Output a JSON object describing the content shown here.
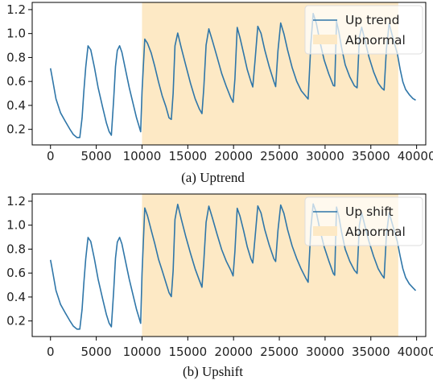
{
  "chart_data": [
    {
      "type": "line",
      "caption": "(a) Uptrend",
      "xlim": [
        -2000,
        41000
      ],
      "ylim": [
        0.07,
        1.26
      ],
      "xticks": [
        0,
        5000,
        10000,
        15000,
        20000,
        25000,
        30000,
        35000,
        40000
      ],
      "xtick_labels": [
        "0",
        "5000",
        "10000",
        "15000",
        "20000",
        "25000",
        "30000",
        "35000",
        "40000"
      ],
      "yticks": [
        0.2,
        0.4,
        0.6,
        0.8,
        1.0,
        1.2
      ],
      "ytick_labels": [
        "0.2",
        "0.4",
        "0.6",
        "0.8",
        "1.0",
        "1.2"
      ],
      "grid": false,
      "legend_position": "upper-right",
      "abnormal_span": {
        "x0": 10000,
        "x1": 38000,
        "label": "Abnormal",
        "color": "#fde9c5"
      },
      "series": [
        {
          "name": "Up trend",
          "color": "#2f76a8",
          "x": [
            0,
            200,
            600,
            1100,
            1600,
            2100,
            2500,
            2900,
            3200,
            3450,
            3650,
            3850,
            4100,
            4400,
            4800,
            5200,
            5700,
            6100,
            6400,
            6650,
            6900,
            7100,
            7300,
            7550,
            7800,
            8200,
            8600,
            9000,
            9400,
            9650,
            9850,
            10000,
            10300,
            10600,
            11000,
            11400,
            11800,
            12200,
            12600,
            12950,
            13200,
            13400,
            13600,
            13900,
            14300,
            14800,
            15300,
            15800,
            16250,
            16550,
            16750,
            17000,
            17300,
            17700,
            18200,
            18700,
            19200,
            19700,
            19950,
            20150,
            20400,
            20700,
            21100,
            21500,
            21900,
            22100,
            22350,
            22650,
            23000,
            23400,
            23900,
            24400,
            24600,
            24850,
            25150,
            25500,
            25900,
            26400,
            26900,
            27400,
            27900,
            28150,
            28450,
            28700,
            29050,
            29450,
            29900,
            30400,
            30900,
            31050,
            31250,
            31500,
            31800,
            32200,
            32700,
            33200,
            33500,
            33750,
            34000,
            34350,
            34800,
            35300,
            35800,
            36200,
            36450,
            36700,
            37000,
            37400,
            37900,
            38200,
            38500,
            38800,
            39200,
            39600,
            39900
          ],
          "values": [
            0.71,
            0.63,
            0.45,
            0.34,
            0.27,
            0.2,
            0.16,
            0.13,
            0.13,
            0.3,
            0.52,
            0.72,
            0.9,
            0.86,
            0.72,
            0.55,
            0.38,
            0.26,
            0.18,
            0.15,
            0.45,
            0.72,
            0.86,
            0.9,
            0.84,
            0.7,
            0.55,
            0.42,
            0.3,
            0.23,
            0.18,
            0.52,
            0.95,
            0.92,
            0.84,
            0.72,
            0.6,
            0.48,
            0.39,
            0.3,
            0.28,
            0.5,
            0.9,
            1.0,
            0.88,
            0.73,
            0.58,
            0.46,
            0.37,
            0.33,
            0.55,
            0.9,
            1.04,
            0.94,
            0.8,
            0.67,
            0.56,
            0.46,
            0.43,
            0.62,
            1.05,
            0.97,
            0.83,
            0.7,
            0.6,
            0.55,
            0.78,
            1.06,
            1.0,
            0.87,
            0.72,
            0.6,
            0.56,
            0.85,
            1.09,
            1.0,
            0.86,
            0.72,
            0.6,
            0.52,
            0.48,
            0.45,
            0.92,
            1.17,
            1.08,
            0.93,
            0.78,
            0.66,
            0.57,
            0.56,
            1.1,
            1.02,
            0.88,
            0.74,
            0.64,
            0.56,
            0.55,
            0.97,
            1.05,
            0.95,
            0.8,
            0.68,
            0.59,
            0.54,
            0.53,
            0.87,
            1.08,
            0.97,
            0.83,
            0.7,
            0.6,
            0.53,
            0.49,
            0.46,
            0.44
          ]
        }
      ]
    },
    {
      "type": "line",
      "caption": "(b) Upshift",
      "xlim": [
        -2000,
        41000
      ],
      "ylim": [
        0.07,
        1.26
      ],
      "xticks": [
        0,
        5000,
        10000,
        15000,
        20000,
        25000,
        30000,
        35000,
        40000
      ],
      "xtick_labels": [
        "0",
        "5000",
        "10000",
        "15000",
        "20000",
        "25000",
        "30000",
        "35000",
        "40000"
      ],
      "yticks": [
        0.2,
        0.4,
        0.6,
        0.8,
        1.0,
        1.2
      ],
      "ytick_labels": [
        "0.2",
        "0.4",
        "0.6",
        "0.8",
        "1.0",
        "1.2"
      ],
      "grid": false,
      "legend_position": "upper-right",
      "abnormal_span": {
        "x0": 10000,
        "x1": 38000,
        "label": "Abnormal",
        "color": "#fde9c5"
      },
      "series": [
        {
          "name": "Up shift",
          "color": "#2f76a8",
          "x": [
            0,
            200,
            600,
            1100,
            1600,
            2100,
            2500,
            2900,
            3200,
            3450,
            3650,
            3850,
            4100,
            4400,
            4800,
            5200,
            5700,
            6100,
            6400,
            6650,
            6900,
            7100,
            7300,
            7550,
            7800,
            8200,
            8600,
            9000,
            9400,
            9650,
            9850,
            10000,
            10300,
            10600,
            11000,
            11400,
            11800,
            12200,
            12600,
            12950,
            13200,
            13400,
            13600,
            13900,
            14300,
            14800,
            15300,
            15800,
            16250,
            16550,
            16750,
            17000,
            17300,
            17700,
            18200,
            18700,
            19200,
            19700,
            19950,
            20150,
            20400,
            20700,
            21100,
            21500,
            21900,
            22100,
            22350,
            22650,
            23000,
            23400,
            23900,
            24400,
            24600,
            24850,
            25150,
            25500,
            25900,
            26400,
            26900,
            27400,
            27900,
            28150,
            28450,
            28700,
            29050,
            29450,
            29900,
            30400,
            30900,
            31050,
            31250,
            31500,
            31800,
            32200,
            32700,
            33200,
            33500,
            33750,
            34000,
            34350,
            34800,
            35300,
            35800,
            36200,
            36450,
            36700,
            37000,
            37400,
            37900,
            38200,
            38500,
            38800,
            39200,
            39600,
            39900
          ],
          "values": [
            0.71,
            0.63,
            0.45,
            0.34,
            0.27,
            0.2,
            0.16,
            0.13,
            0.13,
            0.3,
            0.52,
            0.72,
            0.9,
            0.86,
            0.72,
            0.55,
            0.38,
            0.26,
            0.18,
            0.15,
            0.45,
            0.72,
            0.86,
            0.9,
            0.84,
            0.7,
            0.55,
            0.42,
            0.3,
            0.23,
            0.18,
            0.6,
            1.14,
            1.08,
            0.96,
            0.84,
            0.72,
            0.62,
            0.52,
            0.44,
            0.4,
            0.62,
            1.05,
            1.17,
            1.05,
            0.9,
            0.76,
            0.64,
            0.54,
            0.48,
            0.7,
            1.02,
            1.16,
            1.06,
            0.92,
            0.8,
            0.7,
            0.62,
            0.58,
            0.78,
            1.14,
            1.08,
            0.95,
            0.82,
            0.72,
            0.68,
            0.9,
            1.16,
            1.1,
            0.97,
            0.83,
            0.72,
            0.7,
            0.95,
            1.17,
            1.1,
            0.96,
            0.83,
            0.72,
            0.63,
            0.56,
            0.52,
            0.98,
            1.18,
            1.1,
            0.96,
            0.82,
            0.7,
            0.6,
            0.58,
            1.15,
            1.08,
            0.94,
            0.8,
            0.7,
            0.62,
            0.6,
            1.0,
            1.1,
            1.0,
            0.86,
            0.74,
            0.64,
            0.58,
            0.56,
            0.92,
            1.1,
            1.0,
            0.86,
            0.74,
            0.64,
            0.56,
            0.51,
            0.48,
            0.45
          ]
        }
      ]
    }
  ]
}
